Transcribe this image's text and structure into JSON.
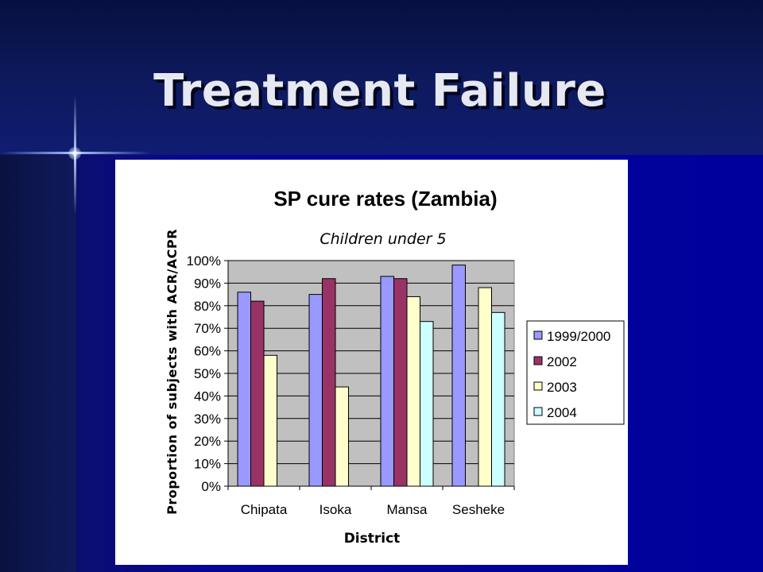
{
  "slide": {
    "title": "Treatment Failure"
  },
  "chart_data": {
    "type": "bar",
    "title": "SP cure rates (Zambia)",
    "subtitle": "Children under 5",
    "xlabel": "District",
    "ylabel": "Proportion of subjects with ACR/ACPR",
    "categories": [
      "Chipata",
      "Isoka",
      "Mansa",
      "Sesheke"
    ],
    "ylim": [
      0,
      100
    ],
    "yticks": [
      0,
      10,
      20,
      30,
      40,
      50,
      60,
      70,
      80,
      90,
      100
    ],
    "ytick_labels": [
      "0%",
      "10%",
      "20%",
      "30%",
      "40%",
      "50%",
      "60%",
      "70%",
      "80%",
      "90%",
      "100%"
    ],
    "grid": true,
    "legend_position": "right",
    "series": [
      {
        "name": "1999/2000",
        "color": "#9999ff",
        "values": [
          86,
          85,
          93,
          98
        ]
      },
      {
        "name": "2002",
        "color": "#993366",
        "values": [
          82,
          92,
          92,
          null
        ]
      },
      {
        "name": "2003",
        "color": "#ffffcc",
        "values": [
          58,
          44,
          84,
          88
        ]
      },
      {
        "name": "2004",
        "color": "#ccffff",
        "values": [
          null,
          null,
          73,
          77
        ]
      }
    ],
    "plot_background": "#c0c0c0"
  }
}
